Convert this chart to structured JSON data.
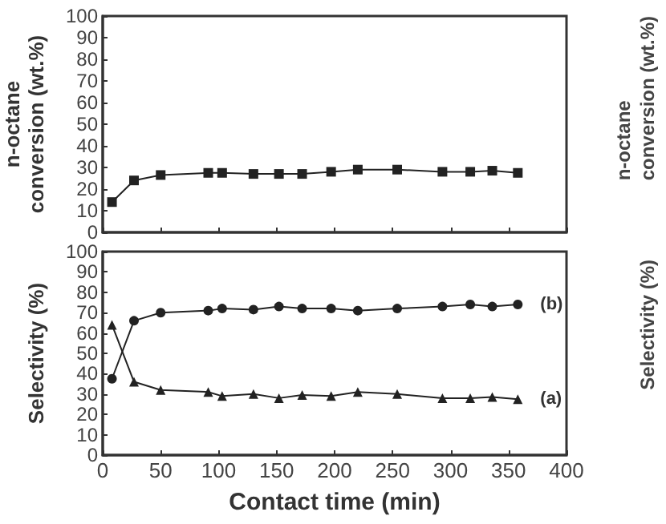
{
  "chart_data": [
    {
      "type": "line",
      "ylabel": "n-octane\nconversion (wt.%)",
      "x": [
        8,
        27,
        50,
        91,
        103,
        130,
        152,
        172,
        197,
        220,
        254,
        293,
        317,
        336,
        358
      ],
      "xlim": [
        0,
        400
      ],
      "xticks": [
        0,
        50,
        100,
        150,
        200,
        250,
        300,
        350,
        400
      ],
      "ylim": [
        0,
        100
      ],
      "yticks": [
        0,
        10,
        20,
        30,
        40,
        50,
        60,
        70,
        80,
        90,
        100
      ],
      "tick_labels": "y",
      "grid": false,
      "legend": false,
      "marker": "square",
      "annotations": [
        "n-octane\nconversion (wt.%)"
      ],
      "series": [
        {
          "color": "#222222",
          "values": [
            14,
            24,
            26.5,
            27.5,
            27.5,
            27,
            27,
            27,
            28,
            29,
            29,
            28,
            28,
            28.5,
            27.5
          ]
        }
      ]
    },
    {
      "type": "line",
      "ylabel": "Selectivity (%)",
      "xlabel": "Contact time (min)",
      "x": [
        8,
        27,
        50,
        91,
        103,
        130,
        152,
        172,
        197,
        220,
        254,
        293,
        317,
        336,
        358
      ],
      "xlim": [
        0,
        400
      ],
      "xticks": [
        0,
        50,
        100,
        150,
        200,
        250,
        300,
        350,
        400
      ],
      "ylim": [
        0,
        100
      ],
      "yticks": [
        0,
        10,
        20,
        30,
        40,
        50,
        60,
        70,
        80,
        90,
        100
      ],
      "grid": false,
      "legend": false,
      "annotations": [
        "Selectivity (%)"
      ],
      "series": [
        {
          "name": "(b)",
          "color": "#222222",
          "marker": "circle",
          "values": [
            37.5,
            66,
            70,
            71,
            72,
            71.5,
            73,
            72,
            72,
            71,
            72,
            73,
            74,
            73,
            74
          ]
        },
        {
          "name": "(a)",
          "color": "#222222",
          "marker": "triangle",
          "values": [
            64,
            36,
            32,
            31,
            29,
            30,
            28,
            29.5,
            29,
            31,
            30,
            28,
            28,
            28.5,
            27.5
          ]
        }
      ]
    }
  ]
}
